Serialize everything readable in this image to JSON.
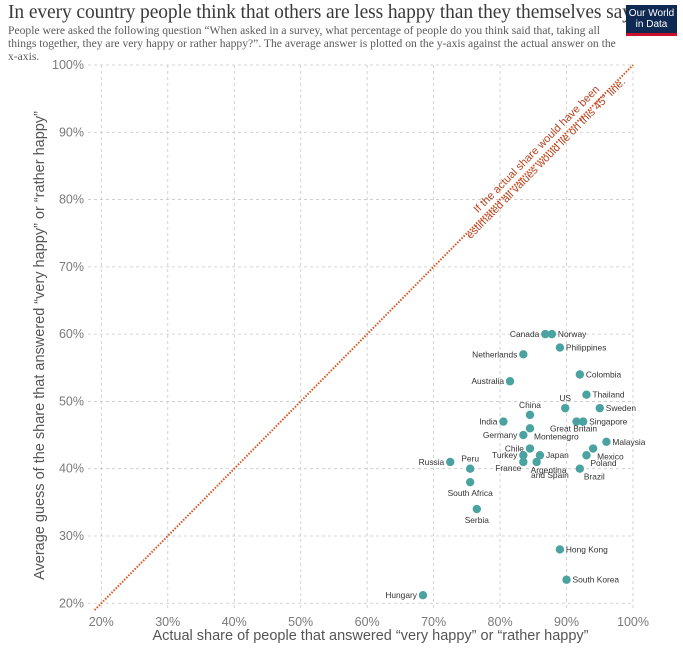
{
  "header": {
    "title": "In every country people think that others are less happy than they themselves say",
    "subtitle": "People were asked the following question “When asked in a survey, what percentage of people do you think said that, taking all things together, they are very happy or rather happy?”. The average answer is plotted on the y-axis against the actual answer on the x-axis.",
    "logo_line1": "Our World",
    "logo_line2": "in Data"
  },
  "colors": {
    "point": "#4aa3a1",
    "diagonal": "#d9531e",
    "grid": "#c8c8c8",
    "logo_bg": "#0f2a52",
    "logo_accent": "#c8102e"
  },
  "chart_data": {
    "type": "scatter",
    "xlabel": "Actual share of people that answered “very happy” or “rather happy”",
    "ylabel": "Average guess of the share that answered “very happy” or “rather happy”",
    "xlim": [
      18,
      100
    ],
    "ylim": [
      19,
      100
    ],
    "x_ticks": [
      20,
      30,
      40,
      50,
      60,
      70,
      80,
      90,
      100
    ],
    "y_ticks": [
      20,
      30,
      40,
      50,
      60,
      70,
      80,
      90,
      100
    ],
    "x_tick_labels": [
      "20%",
      "30%",
      "40%",
      "50%",
      "60%",
      "70%",
      "80%",
      "90%",
      "100%"
    ],
    "y_tick_labels": [
      "20%",
      "30%",
      "40%",
      "50%",
      "60%",
      "70%",
      "80%",
      "90%",
      "100%"
    ],
    "grid": true,
    "diagonal_annotation": {
      "line1": "If the actual share would have been",
      "line2": "estimated all values would lie on this 45° line."
    },
    "points": [
      {
        "country": "Hungary",
        "x": 68.4,
        "y": 21.2,
        "anchor": "end"
      },
      {
        "country": "Serbia",
        "x": 76.5,
        "y": 34.0,
        "anchor": "middle-below"
      },
      {
        "country": "South Africa",
        "x": 75.5,
        "y": 38.0,
        "anchor": "middle-below"
      },
      {
        "country": "Russia",
        "x": 72.5,
        "y": 41.0,
        "anchor": "end"
      },
      {
        "country": "Peru",
        "x": 75.5,
        "y": 40.0,
        "anchor": "middle-above"
      },
      {
        "country": "Hong Kong",
        "x": 89.0,
        "y": 28.0,
        "anchor": "start"
      },
      {
        "country": "South Korea",
        "x": 90.0,
        "y": 23.5,
        "anchor": "start"
      },
      {
        "country": "Canada",
        "x": 86.8,
        "y": 60.0,
        "anchor": "end"
      },
      {
        "country": "Norway",
        "x": 87.8,
        "y": 60.0,
        "anchor": "start"
      },
      {
        "country": "Philippines",
        "x": 89.0,
        "y": 58.0,
        "anchor": "start"
      },
      {
        "country": "Netherlands",
        "x": 83.5,
        "y": 57.0,
        "anchor": "end"
      },
      {
        "country": "Colombia",
        "x": 92.0,
        "y": 54.0,
        "anchor": "start"
      },
      {
        "country": "Australia",
        "x": 81.5,
        "y": 53.0,
        "anchor": "end"
      },
      {
        "country": "Thailand",
        "x": 93.0,
        "y": 51.0,
        "anchor": "start"
      },
      {
        "country": "US",
        "x": 89.8,
        "y": 49.0,
        "anchor": "middle-above"
      },
      {
        "country": "Sweden",
        "x": 95.0,
        "y": 49.0,
        "anchor": "start"
      },
      {
        "country": "China",
        "x": 84.5,
        "y": 48.0,
        "anchor": "middle-above"
      },
      {
        "country": "India",
        "x": 80.5,
        "y": 47.0,
        "anchor": "end"
      },
      {
        "country": "Singapore",
        "x": 92.5,
        "y": 47.0,
        "anchor": "start"
      },
      {
        "country": "Great Britain",
        "x": 91.5,
        "y": 47.0,
        "anchor": "below-left"
      },
      {
        "country": "Germany",
        "x": 83.5,
        "y": 45.0,
        "anchor": "end"
      },
      {
        "country": "Montenegro",
        "x": 84.5,
        "y": 46.0,
        "anchor": "below-right"
      },
      {
        "country": "Malaysia",
        "x": 96.0,
        "y": 44.0,
        "anchor": "start"
      },
      {
        "country": "Chile",
        "x": 84.5,
        "y": 43.0,
        "anchor": "end"
      },
      {
        "country": "Mexico",
        "x": 94.0,
        "y": 43.0,
        "anchor": "below-right"
      },
      {
        "country": "Turkey",
        "x": 83.5,
        "y": 42.0,
        "anchor": "end"
      },
      {
        "country": "Japan",
        "x": 86.0,
        "y": 42.0,
        "anchor": "start"
      },
      {
        "country": "France",
        "x": 83.5,
        "y": 41.0,
        "anchor": "end-low"
      },
      {
        "country": "Argentina",
        "x": 85.5,
        "y": 41.0,
        "anchor": "below"
      },
      {
        "country": "Poland",
        "x": 93.0,
        "y": 42.0,
        "anchor": "below-right"
      },
      {
        "country": "and Spain",
        "x": 87.5,
        "y": 38.6,
        "anchor": "label-only"
      },
      {
        "country": "Brazil",
        "x": 92.0,
        "y": 40.0,
        "anchor": "below-right"
      }
    ]
  }
}
